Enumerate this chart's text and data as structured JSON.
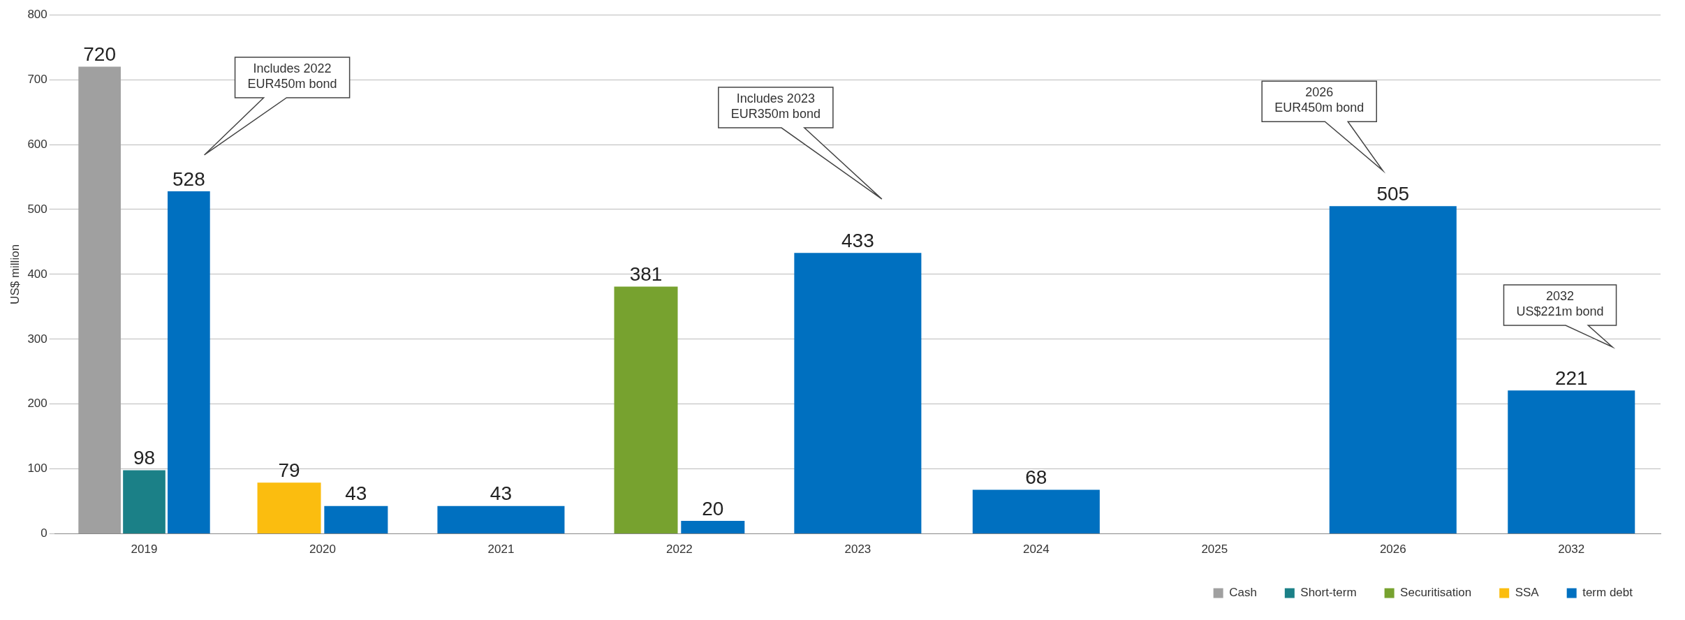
{
  "chart_data": {
    "type": "bar",
    "ylabel": "US$ million",
    "categories": [
      "2019",
      "2020",
      "2021",
      "2022",
      "2023",
      "2024",
      "2025",
      "2026",
      "2032"
    ],
    "series": [
      {
        "name": "Cash",
        "color": "#a0a0a0",
        "values": [
          720,
          null,
          null,
          null,
          null,
          null,
          null,
          null,
          null
        ]
      },
      {
        "name": "Short-term",
        "color": "#1b8087",
        "values": [
          98,
          null,
          null,
          null,
          null,
          null,
          null,
          null,
          null
        ]
      },
      {
        "name": "Securitisation",
        "color": "#77a22f",
        "values": [
          null,
          null,
          null,
          381,
          null,
          null,
          null,
          null,
          null
        ]
      },
      {
        "name": "SSA",
        "color": "#fbbd0f",
        "values": [
          null,
          79,
          null,
          null,
          null,
          null,
          null,
          null,
          null
        ]
      },
      {
        "name": "term debt",
        "color": "#0070c0",
        "values": [
          528,
          43,
          43,
          20,
          433,
          68,
          null,
          505,
          221
        ]
      }
    ],
    "data_labels": true,
    "ylim": [
      0,
      800
    ],
    "yticks": [
      0,
      100,
      200,
      300,
      400,
      500,
      600,
      700,
      800
    ],
    "grid": "y",
    "legend": "bottom right",
    "annotations": [
      "Includes 2022\nEUR450m bond",
      "Includes 2023\nEUR350m bond",
      "2026\nEUR450m bond",
      "2032\nUS$221m bond"
    ]
  }
}
